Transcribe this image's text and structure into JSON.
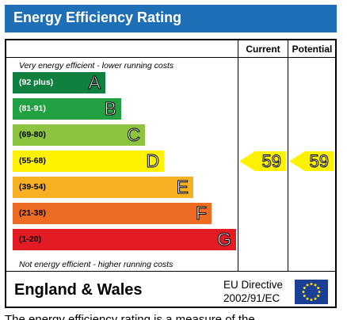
{
  "title": "Energy Efficiency Rating",
  "columns": {
    "current": "Current",
    "potential": "Potential"
  },
  "notes": {
    "top": "Very energy efficient - lower running costs",
    "bottom": "Not energy efficient - higher running costs"
  },
  "bands": [
    {
      "range": "(92 plus)",
      "letter": "A",
      "color": "#0f8040",
      "range_color": "#ffffff"
    },
    {
      "range": "(81-91)",
      "letter": "B",
      "color": "#22a142",
      "range_color": "#ffffff"
    },
    {
      "range": "(69-80)",
      "letter": "C",
      "color": "#8cc43f",
      "range_color": "#000000"
    },
    {
      "range": "(55-68)",
      "letter": "D",
      "color": "#fff200",
      "range_color": "#000000"
    },
    {
      "range": "(39-54)",
      "letter": "E",
      "color": "#f7b021",
      "range_color": "#000000"
    },
    {
      "range": "(21-38)",
      "letter": "F",
      "color": "#ee6b23",
      "range_color": "#000000"
    },
    {
      "range": "(1-20)",
      "letter": "G",
      "color": "#e21b25",
      "range_color": "#000000"
    }
  ],
  "ratings": {
    "current": {
      "value": "59",
      "band": "D",
      "color": "#fff200"
    },
    "potential": {
      "value": "59",
      "band": "D",
      "color": "#fff200"
    }
  },
  "footer": {
    "region": "England & Wales",
    "directive_line1": "EU Directive",
    "directive_line2": "2002/91/EC"
  },
  "bottom_text": "The energy efficiency rating is a measure of the",
  "colors": {
    "title_bar": "#1e6fb5",
    "eu_flag": "#1b3f94",
    "eu_stars": "#ffdd00"
  }
}
